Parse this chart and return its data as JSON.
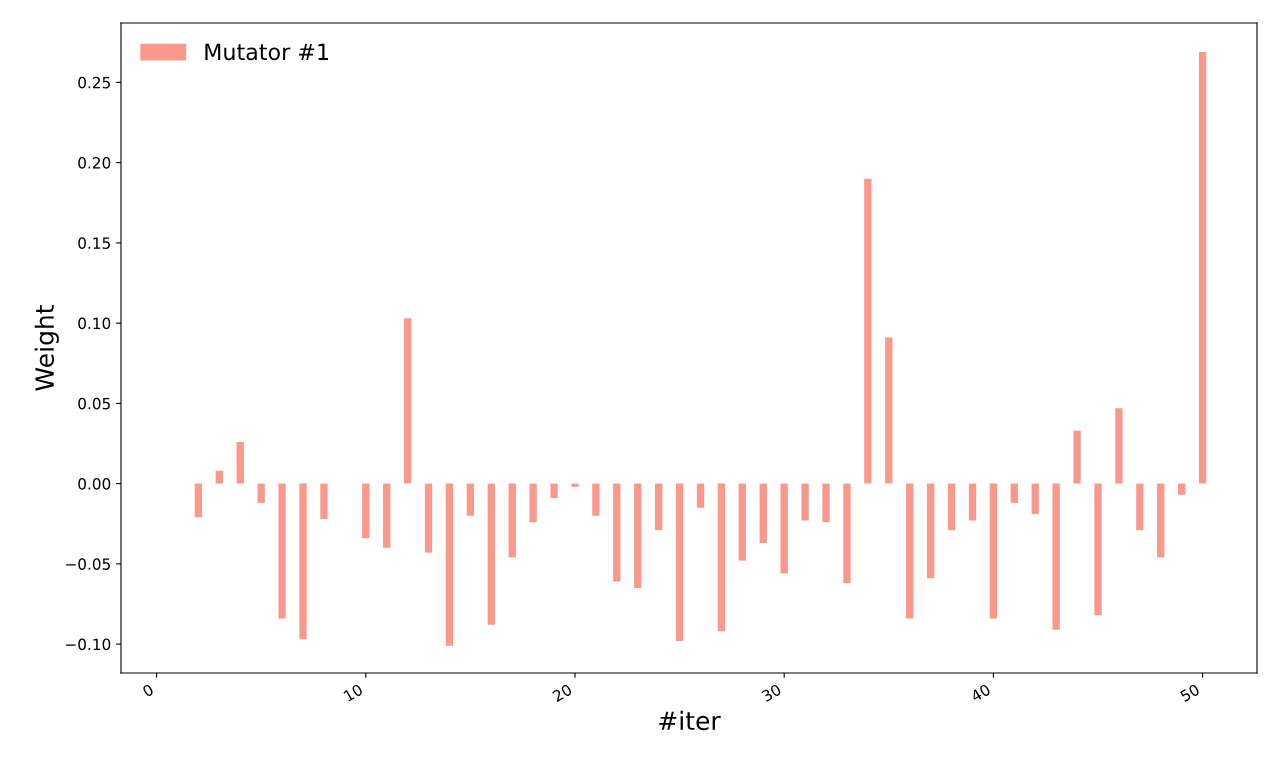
{
  "chart_data": {
    "type": "bar",
    "xlabel": "#iter",
    "ylabel": "Weight",
    "x": [
      0,
      1,
      2,
      3,
      4,
      5,
      6,
      7,
      8,
      9,
      10,
      11,
      12,
      13,
      14,
      15,
      16,
      17,
      18,
      19,
      20,
      21,
      22,
      23,
      24,
      25,
      26,
      27,
      28,
      29,
      30,
      31,
      32,
      33,
      34,
      35,
      36,
      37,
      38,
      39,
      40,
      41,
      42,
      43,
      44,
      45,
      46,
      47,
      48,
      49,
      50
    ],
    "series": [
      {
        "name": "Mutator #1",
        "color": "#fa998b",
        "values": [
          0,
          0,
          -0.021,
          0.008,
          0.026,
          -0.012,
          -0.084,
          -0.097,
          -0.022,
          0,
          -0.034,
          -0.04,
          0.103,
          -0.043,
          -0.101,
          -0.02,
          -0.088,
          -0.046,
          -0.024,
          -0.009,
          -0.002,
          -0.02,
          -0.061,
          -0.065,
          -0.029,
          -0.098,
          -0.015,
          -0.092,
          -0.048,
          -0.037,
          -0.056,
          -0.023,
          -0.024,
          -0.062,
          0.19,
          0.091,
          -0.084,
          -0.059,
          -0.029,
          -0.023,
          -0.084,
          -0.012,
          -0.019,
          -0.091,
          0.033,
          -0.082,
          0.047,
          -0.029,
          -0.046,
          -0.007,
          0.269
        ]
      }
    ],
    "xlim": [
      -1.7,
      52.6
    ],
    "xticks": [
      0,
      10,
      20,
      30,
      40,
      50
    ],
    "ylim": [
      -0.118,
      0.287
    ],
    "yticks": [
      {
        "value": -0.1,
        "label": "−0.10"
      },
      {
        "value": -0.05,
        "label": "−0.05"
      },
      {
        "value": 0,
        "label": "0.00"
      },
      {
        "value": 0.05,
        "label": "0.05"
      },
      {
        "value": 0.1,
        "label": "0.10"
      },
      {
        "value": 0.15,
        "label": "0.15"
      },
      {
        "value": 0.2,
        "label": "0.20"
      },
      {
        "value": 0.25,
        "label": "0.25"
      }
    ],
    "legend": "top left",
    "grid": false
  }
}
